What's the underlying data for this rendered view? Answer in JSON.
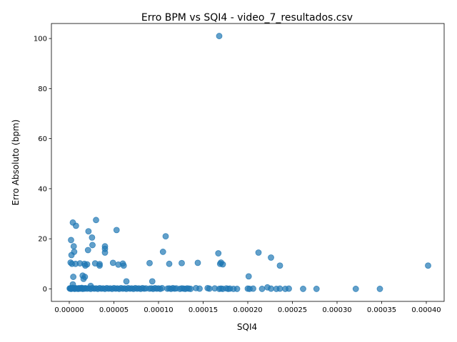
{
  "chart_data": {
    "type": "scatter",
    "title": "Erro BPM vs SQI4 - video_7_resultados.csv",
    "xlabel": "SQI4",
    "ylabel": "Erro Absoluto (bpm)",
    "xlim": [
      -2e-05,
      0.00042
    ],
    "ylim": [
      -5,
      106
    ],
    "xticks": [
      0,
      5e-05,
      0.0001,
      0.00015,
      0.0002,
      0.00025,
      0.0003,
      0.00035,
      0.0004
    ],
    "xtick_labels": [
      "0.00000",
      "0.00005",
      "0.00010",
      "0.00015",
      "0.00020",
      "0.00025",
      "0.00030",
      "0.00035",
      "0.00040"
    ],
    "yticks": [
      0,
      20,
      40,
      60,
      80,
      100
    ],
    "ytick_labels": [
      "0",
      "20",
      "40",
      "60",
      "80",
      "100"
    ],
    "grid": false,
    "point_color": "#1f77b4",
    "points": [
      [
        5e-07,
        0.2
      ],
      [
        1e-06,
        0.1
      ],
      [
        1.5e-06,
        0.3
      ],
      [
        2e-06,
        0.0
      ],
      [
        2.5e-06,
        0.2
      ],
      [
        3e-06,
        0.1
      ],
      [
        4e-06,
        0.4
      ],
      [
        5e-06,
        0.2
      ],
      [
        6e-06,
        0.0
      ],
      [
        7e-06,
        0.3
      ],
      [
        8e-06,
        0.1
      ],
      [
        9e-06,
        0.2
      ],
      [
        1e-05,
        0.0
      ],
      [
        1.1e-05,
        0.3
      ],
      [
        1.2e-05,
        0.1
      ],
      [
        1.3e-05,
        0.2
      ],
      [
        1.4e-05,
        0.4
      ],
      [
        1.5e-05,
        0.0
      ],
      [
        1.6e-05,
        0.2
      ],
      [
        1.7e-05,
        0.1
      ],
      [
        1.8e-05,
        0.3
      ],
      [
        2e-05,
        0.1
      ],
      [
        2.2e-05,
        0.2
      ],
      [
        2.4e-05,
        0.0
      ],
      [
        2.6e-05,
        0.3
      ],
      [
        2.8e-05,
        0.1
      ],
      [
        3e-05,
        0.2
      ],
      [
        3.2e-05,
        0.0
      ],
      [
        3.4e-05,
        0.3
      ],
      [
        3.6e-05,
        0.1
      ],
      [
        3.8e-05,
        0.2
      ],
      [
        4e-05,
        0.0
      ],
      [
        4.2e-05,
        0.3
      ],
      [
        4.4e-05,
        0.1
      ],
      [
        4.6e-05,
        0.2
      ],
      [
        4.8e-05,
        0.0
      ],
      [
        5e-05,
        0.3
      ],
      [
        5.2e-05,
        0.1
      ],
      [
        5.4e-05,
        0.2
      ],
      [
        5.6e-05,
        0.0
      ],
      [
        5.8e-05,
        0.3
      ],
      [
        6e-05,
        0.1
      ],
      [
        6.2e-05,
        0.2
      ],
      [
        6.4e-05,
        0.0
      ],
      [
        6.6e-05,
        0.3
      ],
      [
        6.8e-05,
        0.1
      ],
      [
        7e-05,
        0.2
      ],
      [
        7.2e-05,
        0.0
      ],
      [
        7.4e-05,
        0.3
      ],
      [
        7.6e-05,
        0.1
      ],
      [
        7.8e-05,
        0.2
      ],
      [
        8e-05,
        0.0
      ],
      [
        8.2e-05,
        0.3
      ],
      [
        8.4e-05,
        0.1
      ],
      [
        8.6e-05,
        0.2
      ],
      [
        9e-05,
        0.1
      ],
      [
        9.2e-05,
        0.2
      ],
      [
        9.4e-05,
        0.0
      ],
      [
        9.6e-05,
        0.3
      ],
      [
        9.8e-05,
        0.1
      ],
      [
        0.0001,
        0.2
      ],
      [
        0.000102,
        0.0
      ],
      [
        0.000104,
        0.3
      ],
      [
        0.00011,
        0.1
      ],
      [
        0.000112,
        0.2
      ],
      [
        0.000114,
        0.0
      ],
      [
        0.000116,
        0.3
      ],
      [
        0.000118,
        0.1
      ],
      [
        0.00012,
        0.2
      ],
      [
        0.000124,
        0.0
      ],
      [
        0.000126,
        0.2
      ],
      [
        0.000128,
        0.1
      ],
      [
        0.00013,
        0.0
      ],
      [
        0.000132,
        0.2
      ],
      [
        0.000134,
        0.1
      ],
      [
        0.000136,
        0.0
      ],
      [
        0.000142,
        0.3
      ],
      [
        0.000146,
        0.1
      ],
      [
        0.000155,
        0.3
      ],
      [
        0.000157,
        0.1
      ],
      [
        0.000163,
        0.2
      ],
      [
        0.000168,
        0.0
      ],
      [
        0.00017,
        0.1
      ],
      [
        0.000172,
        0.0
      ],
      [
        0.000176,
        0.2
      ],
      [
        0.000178,
        0.0
      ],
      [
        0.00018,
        0.1
      ],
      [
        0.000184,
        0.0
      ],
      [
        0.000188,
        0.0
      ],
      [
        0.0002,
        0.1
      ],
      [
        0.000202,
        0.0
      ],
      [
        0.000206,
        0.1
      ],
      [
        0.000216,
        0.0
      ],
      [
        0.000222,
        0.6
      ],
      [
        0.000226,
        0.1
      ],
      [
        0.000232,
        0.0
      ],
      [
        0.000236,
        0.1
      ],
      [
        0.000242,
        0.0
      ],
      [
        0.000246,
        0.1
      ],
      [
        0.000262,
        0.0
      ],
      [
        0.000277,
        0.0
      ],
      [
        0.000321,
        0.0
      ],
      [
        0.000348,
        0.0
      ],
      [
        1.5e-06,
        10.5
      ],
      [
        2e-06,
        19.5
      ],
      [
        2.5e-06,
        13.5
      ],
      [
        3e-06,
        10.0
      ],
      [
        4e-06,
        26.5
      ],
      [
        4.5e-06,
        4.8
      ],
      [
        4e-06,
        1.8
      ],
      [
        5e-06,
        17.0
      ],
      [
        5.5e-06,
        14.8
      ],
      [
        7e-06,
        10.0
      ],
      [
        7.5e-06,
        25.2
      ],
      [
        1.2e-05,
        10.2
      ],
      [
        1.5e-05,
        5.3
      ],
      [
        1.6e-05,
        4.0
      ],
      [
        1.7e-05,
        10.0
      ],
      [
        1.75e-05,
        4.8
      ],
      [
        1.8e-05,
        9.3
      ],
      [
        2e-05,
        9.8
      ],
      [
        2.1e-05,
        15.5
      ],
      [
        2.15e-05,
        23.0
      ],
      [
        2.4e-05,
        1.2
      ],
      [
        2.55e-05,
        20.5
      ],
      [
        2.6e-05,
        17.5
      ],
      [
        3e-05,
        27.5
      ],
      [
        2.9e-05,
        10.2
      ],
      [
        3.4e-05,
        9.3
      ],
      [
        3.4e-05,
        9.9
      ],
      [
        4e-05,
        17.0
      ],
      [
        4e-05,
        16.0
      ],
      [
        4e-05,
        14.5
      ],
      [
        4.9e-05,
        10.4
      ],
      [
        5.3e-05,
        23.5
      ],
      [
        5.5e-05,
        9.7
      ],
      [
        6e-05,
        10.1
      ],
      [
        6.1e-05,
        9.3
      ],
      [
        6.4e-05,
        3.0
      ],
      [
        9e-05,
        10.3
      ],
      [
        9.3e-05,
        3.0
      ],
      [
        0.000105,
        14.8
      ],
      [
        0.000108,
        21.0
      ],
      [
        0.000112,
        10.0
      ],
      [
        0.000126,
        10.3
      ],
      [
        0.000144,
        10.4
      ],
      [
        0.000167,
        14.2
      ],
      [
        0.000168,
        101.0
      ],
      [
        0.000169,
        10.0
      ],
      [
        0.00017,
        10.5
      ],
      [
        0.000172,
        9.8
      ],
      [
        0.000201,
        5.0
      ],
      [
        0.000212,
        14.5
      ],
      [
        0.000226,
        12.5
      ],
      [
        0.000236,
        9.3
      ],
      [
        0.000402,
        9.3
      ]
    ]
  }
}
